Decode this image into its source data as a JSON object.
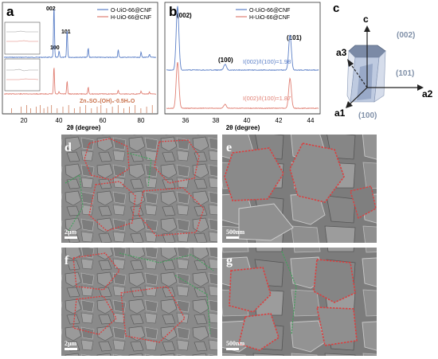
{
  "panels": {
    "a": {
      "letter": "a",
      "legend": [
        "O-UiO-66@CNF",
        "H-UiO-66@CNF"
      ],
      "peak_labels": {
        "p002": "002",
        "p101": "101",
        "p100": "100"
      },
      "reference_label": "Zn₄SO₄(OH)₆·0.5H₂O",
      "xlabel": "2θ (degree)",
      "xticks": [
        "20",
        "40",
        "60",
        "80"
      ]
    },
    "b": {
      "letter": "b",
      "legend": [
        "O-UiO-66@CNF",
        "H-UiO-66@CNF"
      ],
      "peak_labels": {
        "p002": "(002)",
        "p100": "(100)",
        "p101": "(101)"
      },
      "ratio_top": "I(002)/I(100)=1.98",
      "ratio_bottom": "I(002)/I(100)=1.87",
      "xlabel": "2θ (degree)",
      "xticks": [
        "36",
        "38",
        "40",
        "42",
        "44"
      ]
    },
    "c": {
      "letter": "c",
      "axes": {
        "c": "c",
        "a1": "a1",
        "a2": "a2",
        "a3": "a3"
      },
      "faces": {
        "f002": "(002)",
        "f101": "(101)",
        "f100": "(100)"
      }
    },
    "d": {
      "letter": "d",
      "scale": "2μm"
    },
    "e": {
      "letter": "e",
      "scale": "500nm"
    },
    "f": {
      "letter": "f",
      "scale": "2μm"
    },
    "g": {
      "letter": "g",
      "scale": "500nm"
    }
  },
  "colors": {
    "blue_trace": "#5b7fc7",
    "red_trace": "#e07f73",
    "miller_label": "#8090a8",
    "reference_ticks": "#c8704a",
    "sem_bg": "#8a8a8a",
    "outline_red": "#d84040",
    "outline_green": "#3fa35a"
  },
  "chart_data": [
    {
      "type": "line",
      "panel": "a",
      "xlabel": "2θ (degree)",
      "xlim": [
        10,
        90
      ],
      "series": [
        {
          "name": "O-UiO-66@CNF",
          "color": "#5b7fc7",
          "peaks": [
            [
              36.3,
              1.0
            ],
            [
              39.0,
              0.12
            ],
            [
              43.2,
              0.55
            ],
            [
              54.3,
              0.18
            ],
            [
              70.1,
              0.15
            ],
            [
              82.1,
              0.1
            ],
            [
              86.5,
              0.06
            ]
          ]
        },
        {
          "name": "H-UiO-66@CNF",
          "color": "#e07f73",
          "peaks": [
            [
              36.3,
              0.75
            ],
            [
              39.0,
              0.06
            ],
            [
              43.2,
              0.35
            ],
            [
              54.3,
              0.18
            ],
            [
              70.1,
              0.1
            ],
            [
              82.1,
              0.08
            ],
            [
              86.5,
              0.05
            ]
          ]
        }
      ]
    },
    {
      "type": "line",
      "panel": "b",
      "xlabel": "2θ (degree)",
      "xlim": [
        35.3,
        44.9
      ],
      "series": [
        {
          "name": "O-UiO-66@CNF",
          "color": "#5b7fc7",
          "peaks": [
            [
              36.0,
              1.0
            ],
            [
              39.0,
              0.09
            ],
            [
              43.1,
              0.55
            ]
          ]
        },
        {
          "name": "H-UiO-66@CNF",
          "color": "#e07f73",
          "peaks": [
            [
              36.0,
              0.85
            ],
            [
              39.0,
              0.07
            ],
            [
              43.1,
              0.55
            ]
          ]
        }
      ]
    }
  ]
}
